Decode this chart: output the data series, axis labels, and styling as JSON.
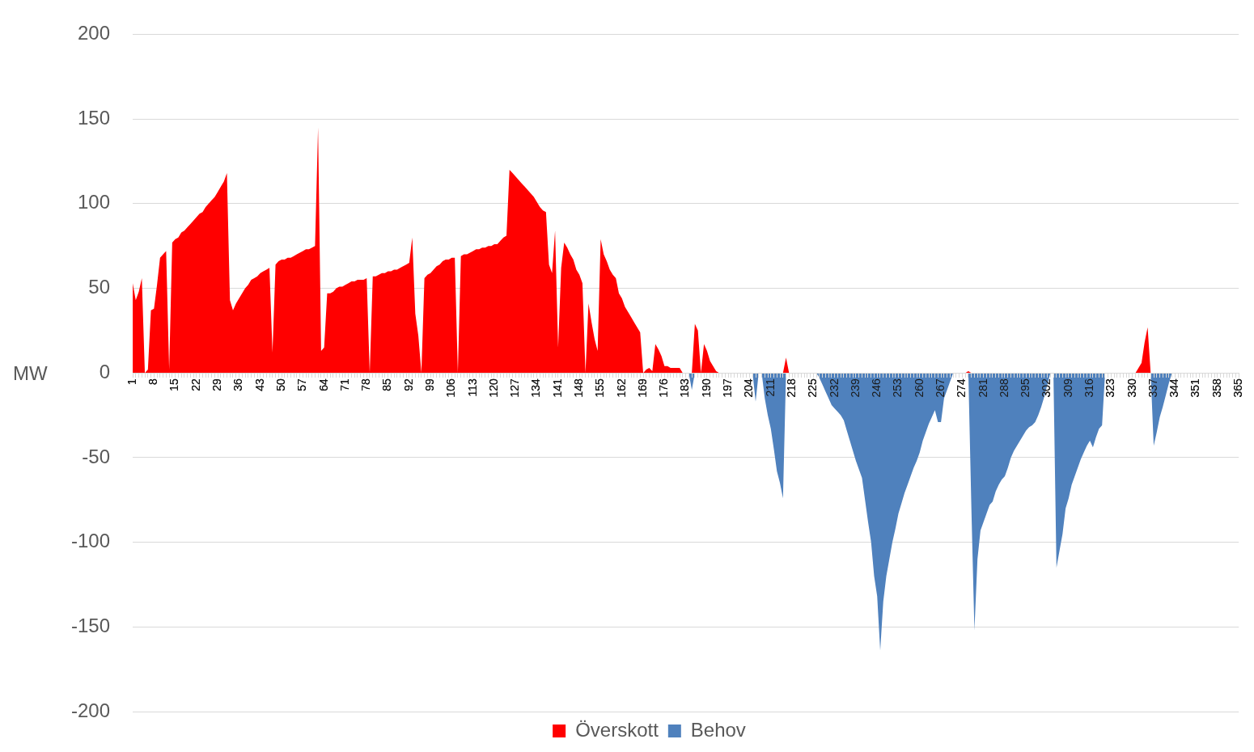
{
  "chart_data": {
    "type": "area",
    "ylabel": "MW",
    "ylim": [
      -200,
      200
    ],
    "yticks": [
      -200,
      -150,
      -100,
      -50,
      0,
      50,
      100,
      150,
      200
    ],
    "grid": "y",
    "legend": "bottom",
    "categories": [
      "1",
      null,
      null,
      null,
      null,
      null,
      null,
      "8",
      null,
      null,
      null,
      null,
      null,
      null,
      "15",
      null,
      null,
      null,
      null,
      null,
      null,
      "22",
      null,
      null,
      null,
      null,
      null,
      null,
      "29",
      null,
      null,
      null,
      null,
      null,
      null,
      "36",
      null,
      null,
      null,
      null,
      null,
      null,
      "43",
      null,
      null,
      null,
      null,
      null,
      null,
      "50",
      null,
      null,
      null,
      null,
      null,
      null,
      "57",
      null,
      null,
      null,
      null,
      null,
      null,
      "64",
      null,
      null,
      null,
      null,
      null,
      null,
      "71",
      null,
      null,
      null,
      null,
      null,
      null,
      "78",
      null,
      null,
      null,
      null,
      null,
      null,
      "85",
      null,
      null,
      null,
      null,
      null,
      null,
      "92",
      null,
      null,
      null,
      null,
      null,
      null,
      "99",
      null,
      null,
      null,
      null,
      null,
      null,
      "106",
      null,
      null,
      null,
      null,
      null,
      null,
      "113",
      null,
      null,
      null,
      null,
      null,
      null,
      "120",
      null,
      null,
      null,
      null,
      null,
      null,
      "127",
      null,
      null,
      null,
      null,
      null,
      null,
      "134",
      null,
      null,
      null,
      null,
      null,
      null,
      "141",
      null,
      null,
      null,
      null,
      null,
      null,
      "148",
      null,
      null,
      null,
      null,
      null,
      null,
      "155",
      null,
      null,
      null,
      null,
      null,
      null,
      "162",
      null,
      null,
      null,
      null,
      null,
      null,
      "169",
      null,
      null,
      null,
      null,
      null,
      null,
      "176",
      null,
      null,
      null,
      null,
      null,
      null,
      "183",
      null,
      null,
      null,
      null,
      null,
      null,
      "190",
      null,
      null,
      null,
      null,
      null,
      null,
      "197",
      null,
      null,
      null,
      null,
      null,
      null,
      "204",
      null,
      null,
      null,
      null,
      null,
      null,
      "211",
      null,
      null,
      null,
      null,
      null,
      null,
      "218",
      null,
      null,
      null,
      null,
      null,
      null,
      "225",
      null,
      null,
      null,
      null,
      null,
      null,
      "232",
      null,
      null,
      null,
      null,
      null,
      null,
      "239",
      null,
      null,
      null,
      null,
      null,
      null,
      "246",
      null,
      null,
      null,
      null,
      null,
      null,
      "253",
      null,
      null,
      null,
      null,
      null,
      null,
      "260",
      null,
      null,
      null,
      null,
      null,
      null,
      "267",
      null,
      null,
      null,
      null,
      null,
      null,
      "274",
      null,
      null,
      null,
      null,
      null,
      null,
      "281",
      null,
      null,
      null,
      null,
      null,
      null,
      "288",
      null,
      null,
      null,
      null,
      null,
      null,
      "295",
      null,
      null,
      null,
      null,
      null,
      null,
      "302",
      null,
      null,
      null,
      null,
      null,
      null,
      "309",
      null,
      null,
      null,
      null,
      null,
      null,
      "316",
      null,
      null,
      null,
      null,
      null,
      null,
      "323",
      null,
      null,
      null,
      null,
      null,
      null,
      "330",
      null,
      null,
      null,
      null,
      null,
      null,
      "337",
      null,
      null,
      null,
      null,
      null,
      null,
      "344",
      null,
      null,
      null,
      null,
      null,
      null,
      "351",
      null,
      null,
      null,
      null,
      null,
      null,
      "358",
      null,
      null,
      null,
      null,
      null,
      null,
      "365"
    ],
    "series": [
      {
        "name": "Överskott",
        "color": "#ff0000",
        "values": [
          53,
          43,
          48,
          56,
          0,
          2,
          37,
          38,
          52,
          68,
          70,
          72,
          2,
          77,
          79,
          80,
          83,
          84,
          86,
          88,
          90,
          92,
          94,
          95,
          98,
          100,
          102,
          104,
          107,
          110,
          113,
          118,
          43,
          37,
          41,
          44,
          47,
          50,
          52,
          55,
          56,
          57,
          59,
          60,
          61,
          62,
          12,
          64,
          66,
          67,
          67,
          68,
          68,
          69,
          70,
          71,
          72,
          73,
          73,
          74,
          75,
          145,
          13,
          15,
          47,
          47,
          48,
          50,
          51,
          51,
          52,
          53,
          54,
          54,
          55,
          55,
          55,
          56,
          0,
          57,
          57,
          58,
          59,
          59,
          60,
          60,
          61,
          61,
          62,
          63,
          64,
          65,
          80,
          35,
          22,
          0,
          56,
          58,
          59,
          61,
          63,
          64,
          66,
          67,
          67,
          68,
          68,
          0,
          69,
          70,
          70,
          71,
          72,
          73,
          73,
          74,
          74,
          75,
          75,
          76,
          76,
          78,
          80,
          81,
          120,
          118,
          116,
          114,
          112,
          110,
          108,
          106,
          104,
          101,
          98,
          96,
          95,
          64,
          59,
          84,
          15,
          62,
          77,
          74,
          70,
          67,
          61,
          58,
          53,
          0,
          41,
          30,
          20,
          13,
          79,
          70,
          66,
          61,
          58,
          56,
          47,
          44,
          39,
          36,
          33,
          30,
          27,
          24,
          0,
          2,
          3,
          1,
          17,
          14,
          10,
          4,
          4,
          3,
          3,
          3,
          3,
          0,
          0,
          0,
          0,
          29,
          25,
          0,
          17,
          13,
          7,
          4,
          1,
          0,
          0,
          0,
          0,
          0,
          0,
          0,
          0,
          0,
          0,
          0,
          0,
          0,
          0,
          0,
          0,
          0,
          0,
          0,
          0,
          0,
          0,
          9,
          0,
          0,
          0,
          0,
          0,
          0,
          0,
          0,
          0,
          0,
          0,
          0,
          0,
          0,
          0,
          0,
          0,
          0,
          0,
          0,
          0,
          0,
          0,
          0,
          0,
          0,
          0,
          0,
          0,
          0,
          0,
          0,
          0,
          0,
          0,
          0,
          0,
          0,
          0,
          0,
          0,
          0,
          0,
          0,
          0,
          0,
          0,
          0,
          0,
          0,
          0,
          0,
          0,
          0,
          0,
          0,
          0,
          0,
          0,
          1,
          0,
          0,
          0,
          0,
          0,
          0,
          0,
          0,
          0,
          0,
          0,
          0,
          0,
          0,
          0,
          0,
          0,
          0,
          0,
          0,
          0,
          0,
          0,
          0,
          0,
          0,
          0,
          0,
          0,
          0,
          0,
          0,
          0,
          0,
          0,
          0,
          0,
          0,
          0,
          0,
          0,
          0,
          0,
          0,
          0,
          0,
          0,
          0,
          0,
          0,
          0,
          0,
          0,
          0,
          0,
          3,
          6,
          18,
          27,
          0,
          0,
          0,
          0,
          0,
          0,
          0,
          0,
          0,
          0,
          0,
          0,
          0,
          0,
          0,
          0,
          0,
          0,
          0,
          0,
          0,
          0,
          0,
          0,
          0,
          0,
          0,
          0,
          0,
          0
        ]
      },
      {
        "name": "Behov",
        "color": "#4f81bd",
        "values": [
          0,
          0,
          0,
          0,
          0,
          0,
          0,
          0,
          0,
          0,
          0,
          0,
          0,
          0,
          0,
          0,
          0,
          0,
          0,
          0,
          0,
          0,
          0,
          0,
          0,
          0,
          0,
          0,
          0,
          0,
          0,
          0,
          0,
          0,
          0,
          0,
          0,
          0,
          0,
          0,
          0,
          0,
          0,
          0,
          0,
          0,
          0,
          0,
          0,
          0,
          0,
          0,
          0,
          0,
          0,
          0,
          0,
          0,
          0,
          0,
          0,
          0,
          0,
          0,
          0,
          0,
          0,
          0,
          0,
          0,
          0,
          0,
          0,
          0,
          0,
          0,
          0,
          0,
          0,
          0,
          0,
          0,
          0,
          0,
          0,
          0,
          0,
          0,
          0,
          0,
          0,
          0,
          0,
          0,
          0,
          0,
          0,
          0,
          0,
          0,
          0,
          0,
          0,
          0,
          0,
          0,
          0,
          0,
          0,
          0,
          0,
          0,
          0,
          0,
          0,
          0,
          0,
          0,
          0,
          0,
          0,
          0,
          0,
          0,
          0,
          0,
          0,
          0,
          0,
          0,
          0,
          0,
          0,
          0,
          0,
          0,
          0,
          0,
          0,
          0,
          0,
          0,
          0,
          0,
          0,
          0,
          0,
          0,
          0,
          0,
          0,
          0,
          0,
          0,
          0,
          0,
          0,
          0,
          0,
          0,
          0,
          0,
          0,
          0,
          0,
          0,
          0,
          0,
          0,
          0,
          0,
          0,
          0,
          0,
          0,
          0,
          0,
          0,
          0,
          0,
          0,
          0,
          0,
          0,
          -10,
          0,
          0,
          0,
          0,
          0,
          0,
          0,
          0,
          0,
          0,
          0,
          0,
          0,
          0,
          0,
          0,
          0,
          0,
          0,
          0,
          -17,
          0,
          0,
          -15,
          -25,
          -33,
          -45,
          -58,
          -65,
          -74,
          0,
          0,
          0,
          0,
          0,
          0,
          0,
          0,
          0,
          0,
          0,
          -3,
          -7,
          -11,
          -15,
          -19,
          -21,
          -23,
          -25,
          -28,
          -34,
          -40,
          -46,
          -52,
          -57,
          -62,
          -75,
          -88,
          -100,
          -120,
          -132,
          -164,
          -135,
          -120,
          -110,
          -100,
          -92,
          -83,
          -77,
          -71,
          -66,
          -61,
          -56,
          -52,
          -47,
          -40,
          -35,
          -30,
          -26,
          -22,
          -29,
          -29,
          -15,
          -10,
          -5,
          0,
          0,
          0,
          0,
          0,
          0,
          -80,
          -152,
          -110,
          -93,
          -88,
          -83,
          -78,
          -76,
          -70,
          -66,
          -63,
          -61,
          -56,
          -50,
          -46,
          -43,
          -40,
          -37,
          -34,
          -32,
          -31,
          -29,
          -25,
          -20,
          -14,
          -7,
          0,
          0,
          -115,
          -105,
          -95,
          -80,
          -74,
          -66,
          -61,
          -56,
          -51,
          -47,
          -43,
          -40,
          -44,
          -38,
          -33,
          -31,
          0,
          0,
          0,
          0,
          0,
          0,
          0,
          0,
          0,
          0,
          0,
          0,
          0,
          0,
          0,
          0,
          -43,
          -35,
          -26,
          -20,
          -13,
          -6,
          0,
          0,
          0,
          0,
          0,
          0,
          0,
          0,
          0,
          0,
          0,
          0,
          0,
          0,
          0,
          0,
          0,
          0,
          0,
          0,
          0,
          0,
          0
        ]
      }
    ]
  }
}
